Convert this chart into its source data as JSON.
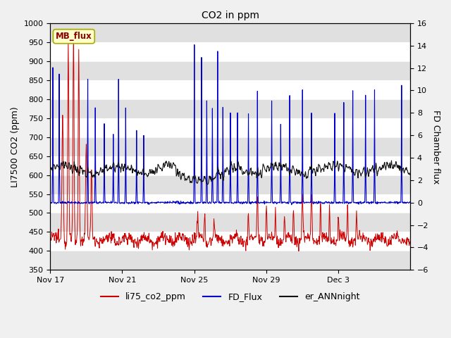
{
  "title": "CO2 in ppm",
  "ylabel_left": "LI7500 CO2 (ppm)",
  "ylabel_right": "FD Chamber flux",
  "ylim_left": [
    350,
    1000
  ],
  "ylim_right": [
    -6,
    16
  ],
  "yticks_left": [
    350,
    400,
    450,
    500,
    550,
    600,
    650,
    700,
    750,
    800,
    850,
    900,
    950,
    1000
  ],
  "yticks_right": [
    -6,
    -4,
    -2,
    0,
    2,
    4,
    6,
    8,
    10,
    12,
    14,
    16
  ],
  "xtick_labels": [
    "Nov 17",
    "Nov 21",
    "Nov 25",
    "Nov 29",
    "Dec 3"
  ],
  "xtick_days": [
    0,
    4,
    8,
    12,
    16
  ],
  "n_days": 20,
  "bg_color": "#f0f0f0",
  "plot_bg_color": "#ffffff",
  "stripe_color": "#e0e0e0",
  "legend_label_red": "li75_co2_ppm",
  "legend_label_blue": "FD_Flux",
  "legend_label_black": "er_ANNnight",
  "mb_flux_label": "MB_flux",
  "red_color": "#cc0000",
  "blue_color": "#0000cc",
  "black_color": "#111111",
  "title_fontsize": 10,
  "axis_label_fontsize": 9,
  "tick_fontsize": 8,
  "figsize": [
    6.4,
    4.8
  ],
  "dpi": 100
}
